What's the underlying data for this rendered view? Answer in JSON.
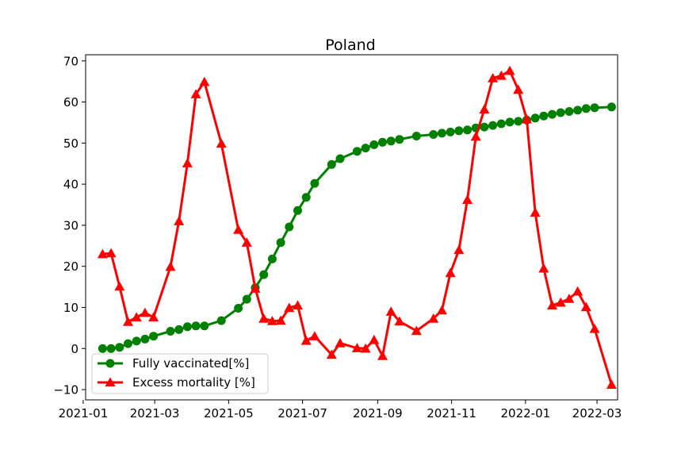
{
  "chart_data": {
    "type": "line",
    "title": "Poland",
    "xlabel": "",
    "ylabel": "",
    "x_axis": {
      "type": "date",
      "range": [
        "2021-01-03",
        "2022-03-18"
      ],
      "ticks": [
        {
          "date": "2021-01-01",
          "label": "2021-01"
        },
        {
          "date": "2021-03-01",
          "label": "2021-03"
        },
        {
          "date": "2021-05-01",
          "label": "2021-05"
        },
        {
          "date": "2021-07-01",
          "label": "2021-07"
        },
        {
          "date": "2021-09-01",
          "label": "2021-09"
        },
        {
          "date": "2021-11-01",
          "label": "2021-11"
        },
        {
          "date": "2022-01-01",
          "label": "2022-01"
        },
        {
          "date": "2022-03-01",
          "label": "2022-03"
        }
      ]
    },
    "y_axis": {
      "range": [
        -12.5,
        71.5
      ],
      "ticks": [
        -10,
        0,
        10,
        20,
        30,
        40,
        50,
        60,
        70
      ],
      "tick_labels": [
        "−10",
        "0",
        "10",
        "20",
        "30",
        "40",
        "50",
        "60",
        "70"
      ]
    },
    "grid": false,
    "legend": {
      "location": "lower-left"
    },
    "series": [
      {
        "name": "Fully vaccinated[%]",
        "color": "#008000",
        "marker": "circle",
        "points": [
          [
            "2021-01-17",
            0.0
          ],
          [
            "2021-01-24",
            0.0
          ],
          [
            "2021-01-31",
            0.3
          ],
          [
            "2021-02-07",
            1.2
          ],
          [
            "2021-02-14",
            1.8
          ],
          [
            "2021-02-21",
            2.3
          ],
          [
            "2021-02-28",
            3.0
          ],
          [
            "2021-03-14",
            4.2
          ],
          [
            "2021-03-21",
            4.6
          ],
          [
            "2021-03-28",
            5.3
          ],
          [
            "2021-04-04",
            5.5
          ],
          [
            "2021-04-11",
            5.5
          ],
          [
            "2021-04-25",
            6.8
          ],
          [
            "2021-05-09",
            9.8
          ],
          [
            "2021-05-16",
            12.0
          ],
          [
            "2021-05-23",
            14.8
          ],
          [
            "2021-05-30",
            18.0
          ],
          [
            "2021-06-06",
            21.8
          ],
          [
            "2021-06-13",
            25.8
          ],
          [
            "2021-06-20",
            29.6
          ],
          [
            "2021-06-27",
            33.6
          ],
          [
            "2021-07-04",
            36.8
          ],
          [
            "2021-07-11",
            40.2
          ],
          [
            "2021-07-25",
            44.8
          ],
          [
            "2021-08-01",
            46.2
          ],
          [
            "2021-08-15",
            48.0
          ],
          [
            "2021-08-22",
            48.8
          ],
          [
            "2021-08-29",
            49.6
          ],
          [
            "2021-09-05",
            50.2
          ],
          [
            "2021-09-12",
            50.5
          ],
          [
            "2021-09-19",
            50.9
          ],
          [
            "2021-10-03",
            51.7
          ],
          [
            "2021-10-17",
            52.1
          ],
          [
            "2021-10-24",
            52.4
          ],
          [
            "2021-10-31",
            52.7
          ],
          [
            "2021-11-07",
            53.0
          ],
          [
            "2021-11-14",
            53.2
          ],
          [
            "2021-11-21",
            53.7
          ],
          [
            "2021-11-28",
            53.9
          ],
          [
            "2021-12-05",
            54.3
          ],
          [
            "2021-12-12",
            54.7
          ],
          [
            "2021-12-19",
            55.1
          ],
          [
            "2021-12-26",
            55.3
          ],
          [
            "2022-01-02",
            55.6
          ],
          [
            "2022-01-09",
            56.1
          ],
          [
            "2022-01-16",
            56.6
          ],
          [
            "2022-01-23",
            57.0
          ],
          [
            "2022-01-30",
            57.4
          ],
          [
            "2022-02-06",
            57.7
          ],
          [
            "2022-02-13",
            58.0
          ],
          [
            "2022-02-20",
            58.4
          ],
          [
            "2022-02-27",
            58.6
          ],
          [
            "2022-03-13",
            58.8
          ]
        ]
      },
      {
        "name": "Excess mortality [%]",
        "color": "#ff0000",
        "marker": "triangle-up",
        "points": [
          [
            "2021-01-17",
            23.0
          ],
          [
            "2021-01-24",
            23.2
          ],
          [
            "2021-01-31",
            15.1
          ],
          [
            "2021-02-07",
            6.5
          ],
          [
            "2021-02-14",
            7.6
          ],
          [
            "2021-02-21",
            8.7
          ],
          [
            "2021-02-28",
            7.6
          ],
          [
            "2021-03-14",
            19.9
          ],
          [
            "2021-03-21",
            31.0
          ],
          [
            "2021-03-28",
            45.1
          ],
          [
            "2021-04-04",
            61.9
          ],
          [
            "2021-04-11",
            64.9
          ],
          [
            "2021-04-25",
            49.9
          ],
          [
            "2021-05-09",
            28.9
          ],
          [
            "2021-05-16",
            25.8
          ],
          [
            "2021-05-23",
            14.6
          ],
          [
            "2021-05-30",
            7.3
          ],
          [
            "2021-06-06",
            6.7
          ],
          [
            "2021-06-13",
            6.8
          ],
          [
            "2021-06-20",
            9.9
          ],
          [
            "2021-06-27",
            10.5
          ],
          [
            "2021-07-04",
            1.9
          ],
          [
            "2021-07-11",
            3.0
          ],
          [
            "2021-07-25",
            -1.5
          ],
          [
            "2021-08-01",
            1.3
          ],
          [
            "2021-08-15",
            0.1
          ],
          [
            "2021-08-22",
            0.0
          ],
          [
            "2021-08-29",
            2.1
          ],
          [
            "2021-09-05",
            -1.8
          ],
          [
            "2021-09-12",
            9.0
          ],
          [
            "2021-09-19",
            6.6
          ],
          [
            "2021-10-03",
            4.3
          ],
          [
            "2021-10-17",
            7.3
          ],
          [
            "2021-10-24",
            9.3
          ],
          [
            "2021-10-31",
            18.4
          ],
          [
            "2021-11-07",
            24.0
          ],
          [
            "2021-11-14",
            36.2
          ],
          [
            "2021-11-21",
            51.6
          ],
          [
            "2021-11-28",
            58.2
          ],
          [
            "2021-12-05",
            65.8
          ],
          [
            "2021-12-12",
            66.4
          ],
          [
            "2021-12-19",
            67.6
          ],
          [
            "2021-12-26",
            63.0
          ],
          [
            "2022-01-02",
            55.8
          ],
          [
            "2022-01-09",
            33.1
          ],
          [
            "2022-01-16",
            19.5
          ],
          [
            "2022-01-23",
            10.5
          ],
          [
            "2022-01-30",
            11.2
          ],
          [
            "2022-02-06",
            12.1
          ],
          [
            "2022-02-13",
            13.9
          ],
          [
            "2022-02-20",
            10.1
          ],
          [
            "2022-02-27",
            4.8
          ],
          [
            "2022-03-13",
            -8.8
          ]
        ]
      }
    ]
  }
}
